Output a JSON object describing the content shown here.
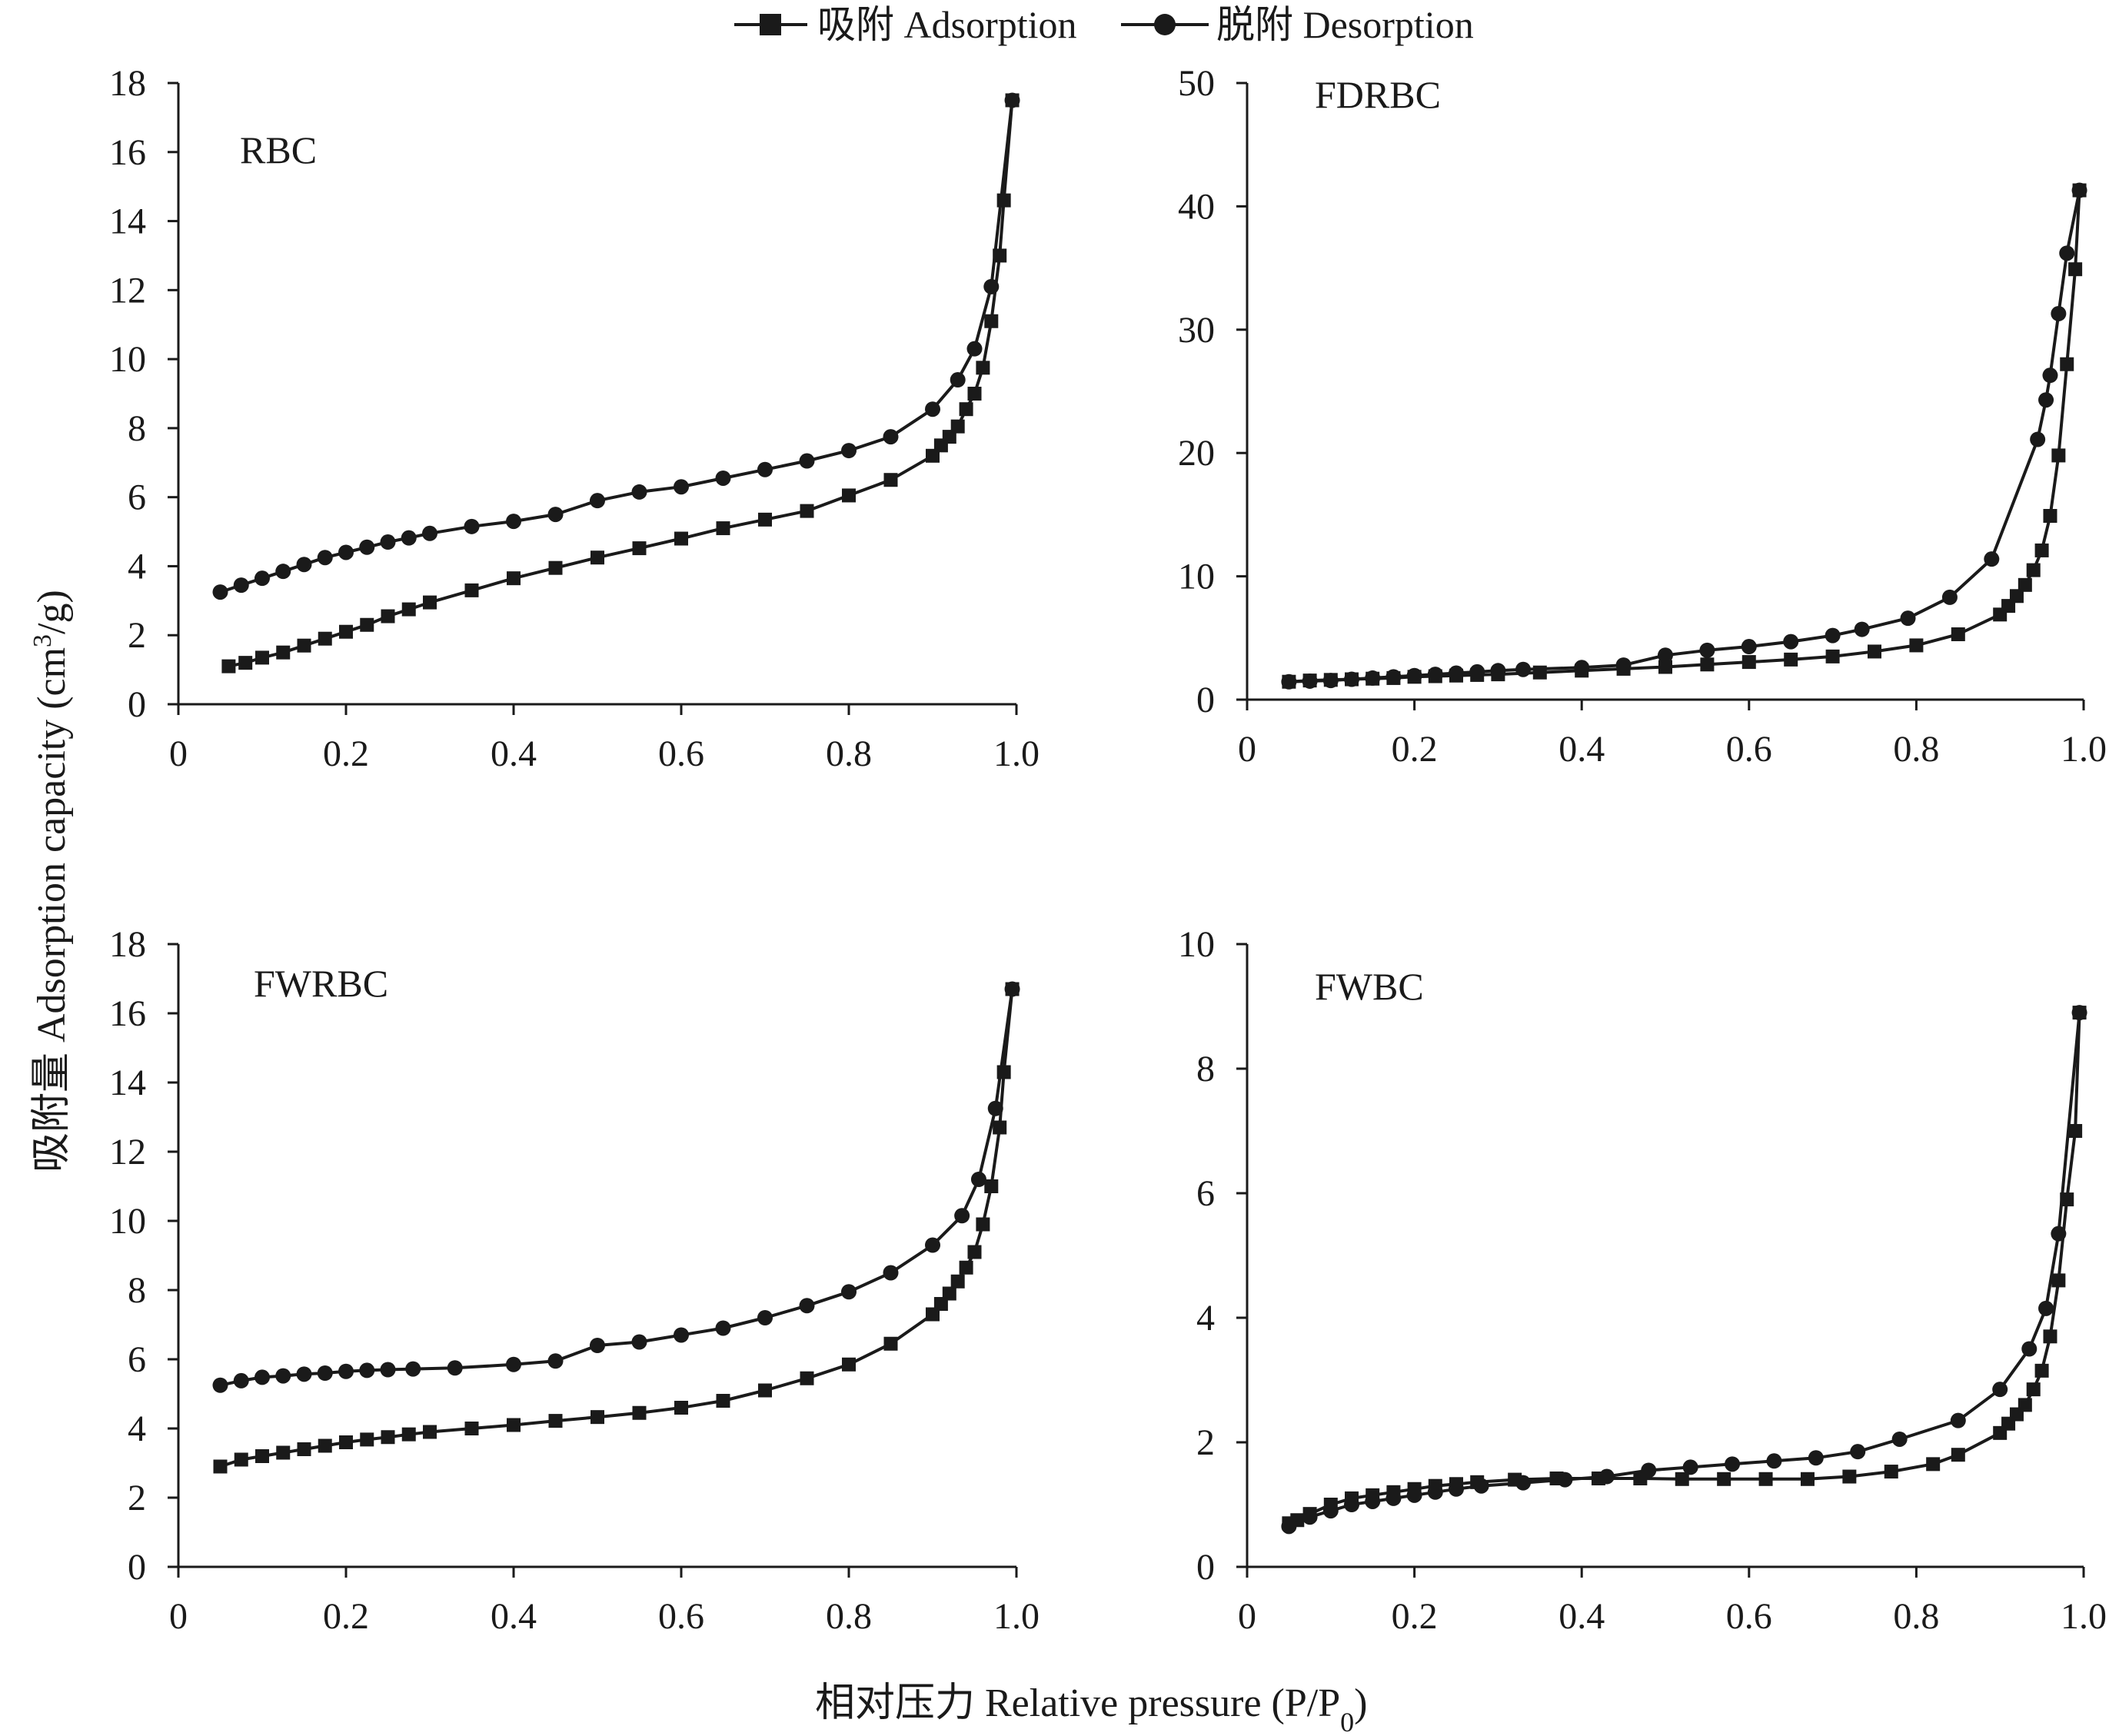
{
  "legend": {
    "adsorption": "吸附 Adsorption",
    "desorption": "脱附 Desorption"
  },
  "axis_titles": {
    "x_prefix": "相对压力 Relative pressure (P/P",
    "x_sub": "0",
    "x_suffix": ")",
    "y_prefix": "吸附量 Adsorption capacity (cm",
    "y_sup": "3",
    "y_suffix": "/g)"
  },
  "colors": {
    "line": "#1a1a1a"
  },
  "chart_data": [
    {
      "type": "line",
      "title": "RBC",
      "xlim": [
        0,
        1.0
      ],
      "ylim": [
        0,
        18
      ],
      "x_ticks": [
        "0",
        "0.2",
        "0.4",
        "0.6",
        "0.8",
        "1.0"
      ],
      "y_ticks": [
        "0",
        "2",
        "4",
        "6",
        "8",
        "10",
        "12",
        "14",
        "16",
        "18"
      ],
      "series": [
        {
          "name": "吸附 Adsorption",
          "marker": "square",
          "points": [
            [
              0.06,
              1.1
            ],
            [
              0.08,
              1.2
            ],
            [
              0.1,
              1.35
            ],
            [
              0.125,
              1.5
            ],
            [
              0.15,
              1.7
            ],
            [
              0.175,
              1.9
            ],
            [
              0.2,
              2.1
            ],
            [
              0.225,
              2.3
            ],
            [
              0.25,
              2.55
            ],
            [
              0.275,
              2.75
            ],
            [
              0.3,
              2.95
            ],
            [
              0.35,
              3.3
            ],
            [
              0.4,
              3.65
            ],
            [
              0.45,
              3.95
            ],
            [
              0.5,
              4.25
            ],
            [
              0.55,
              4.52
            ],
            [
              0.6,
              4.8
            ],
            [
              0.65,
              5.1
            ],
            [
              0.7,
              5.35
            ],
            [
              0.75,
              5.6
            ],
            [
              0.8,
              6.05
            ],
            [
              0.85,
              6.5
            ],
            [
              0.9,
              7.2
            ],
            [
              0.91,
              7.5
            ],
            [
              0.92,
              7.75
            ],
            [
              0.93,
              8.05
            ],
            [
              0.94,
              8.55
            ],
            [
              0.95,
              9.0
            ],
            [
              0.96,
              9.75
            ],
            [
              0.97,
              11.1
            ],
            [
              0.98,
              13.0
            ],
            [
              0.985,
              14.6
            ],
            [
              0.995,
              17.5
            ]
          ]
        },
        {
          "name": "脱附 Desorption",
          "marker": "circle",
          "points": [
            [
              0.995,
              17.5
            ],
            [
              0.97,
              12.1
            ],
            [
              0.95,
              10.3
            ],
            [
              0.93,
              9.4
            ],
            [
              0.9,
              8.55
            ],
            [
              0.85,
              7.75
            ],
            [
              0.8,
              7.35
            ],
            [
              0.75,
              7.05
            ],
            [
              0.7,
              6.8
            ],
            [
              0.65,
              6.55
            ],
            [
              0.6,
              6.3
            ],
            [
              0.55,
              6.15
            ],
            [
              0.5,
              5.9
            ],
            [
              0.45,
              5.5
            ],
            [
              0.4,
              5.3
            ],
            [
              0.35,
              5.15
            ],
            [
              0.3,
              4.95
            ],
            [
              0.275,
              4.82
            ],
            [
              0.25,
              4.7
            ],
            [
              0.225,
              4.55
            ],
            [
              0.2,
              4.4
            ],
            [
              0.175,
              4.25
            ],
            [
              0.15,
              4.05
            ],
            [
              0.125,
              3.85
            ],
            [
              0.1,
              3.65
            ],
            [
              0.075,
              3.45
            ],
            [
              0.05,
              3.25
            ]
          ]
        }
      ]
    },
    {
      "type": "line",
      "title": "FDRBC",
      "xlim": [
        0,
        1.0
      ],
      "ylim": [
        0,
        50
      ],
      "x_ticks": [
        "0",
        "0.2",
        "0.4",
        "0.6",
        "0.8",
        "1.0"
      ],
      "y_ticks": [
        "0",
        "10",
        "20",
        "30",
        "40",
        "50"
      ],
      "series": [
        {
          "name": "吸附 Adsorption",
          "marker": "square",
          "points": [
            [
              0.05,
              1.45
            ],
            [
              0.075,
              1.55
            ],
            [
              0.1,
              1.6
            ],
            [
              0.125,
              1.65
            ],
            [
              0.15,
              1.7
            ],
            [
              0.175,
              1.75
            ],
            [
              0.2,
              1.85
            ],
            [
              0.225,
              1.9
            ],
            [
              0.25,
              1.95
            ],
            [
              0.275,
              2.0
            ],
            [
              0.3,
              2.05
            ],
            [
              0.35,
              2.2
            ],
            [
              0.4,
              2.35
            ],
            [
              0.45,
              2.5
            ],
            [
              0.5,
              2.65
            ],
            [
              0.55,
              2.85
            ],
            [
              0.6,
              3.05
            ],
            [
              0.65,
              3.25
            ],
            [
              0.7,
              3.5
            ],
            [
              0.75,
              3.9
            ],
            [
              0.8,
              4.4
            ],
            [
              0.85,
              5.3
            ],
            [
              0.9,
              6.9
            ],
            [
              0.91,
              7.6
            ],
            [
              0.92,
              8.4
            ],
            [
              0.93,
              9.3
            ],
            [
              0.94,
              10.5
            ],
            [
              0.95,
              12.1
            ],
            [
              0.96,
              14.9
            ],
            [
              0.97,
              19.8
            ],
            [
              0.98,
              27.2
            ],
            [
              0.99,
              34.9
            ],
            [
              0.995,
              41.3
            ]
          ]
        },
        {
          "name": "脱附 Desorption",
          "marker": "circle",
          "points": [
            [
              0.995,
              41.3
            ],
            [
              0.98,
              36.2
            ],
            [
              0.97,
              31.3
            ],
            [
              0.96,
              26.3
            ],
            [
              0.955,
              24.3
            ],
            [
              0.945,
              21.1
            ],
            [
              0.89,
              11.4
            ],
            [
              0.84,
              8.3
            ],
            [
              0.79,
              6.6
            ],
            [
              0.735,
              5.7
            ],
            [
              0.7,
              5.2
            ],
            [
              0.65,
              4.7
            ],
            [
              0.6,
              4.3
            ],
            [
              0.55,
              4.0
            ],
            [
              0.5,
              3.6
            ],
            [
              0.45,
              2.8
            ],
            [
              0.4,
              2.6
            ],
            [
              0.33,
              2.45
            ],
            [
              0.3,
              2.35
            ],
            [
              0.275,
              2.25
            ],
            [
              0.25,
              2.15
            ],
            [
              0.225,
              2.05
            ],
            [
              0.2,
              1.95
            ],
            [
              0.175,
              1.85
            ],
            [
              0.15,
              1.75
            ],
            [
              0.125,
              1.65
            ],
            [
              0.1,
              1.55
            ],
            [
              0.075,
              1.5
            ],
            [
              0.05,
              1.45
            ]
          ]
        }
      ]
    },
    {
      "type": "line",
      "title": "FWRBC",
      "xlim": [
        0,
        1.0
      ],
      "ylim": [
        0,
        18
      ],
      "x_ticks": [
        "0",
        "0.2",
        "0.4",
        "0.6",
        "0.8",
        "1.0"
      ],
      "y_ticks": [
        "0",
        "2",
        "4",
        "6",
        "8",
        "10",
        "12",
        "14",
        "16",
        "18"
      ],
      "series": [
        {
          "name": "吸附 Adsorption",
          "marker": "square",
          "points": [
            [
              0.05,
              2.9
            ],
            [
              0.075,
              3.1
            ],
            [
              0.1,
              3.2
            ],
            [
              0.125,
              3.3
            ],
            [
              0.15,
              3.4
            ],
            [
              0.175,
              3.5
            ],
            [
              0.2,
              3.6
            ],
            [
              0.225,
              3.68
            ],
            [
              0.25,
              3.75
            ],
            [
              0.275,
              3.83
            ],
            [
              0.3,
              3.9
            ],
            [
              0.35,
              4.0
            ],
            [
              0.4,
              4.1
            ],
            [
              0.45,
              4.22
            ],
            [
              0.5,
              4.33
            ],
            [
              0.55,
              4.45
            ],
            [
              0.6,
              4.6
            ],
            [
              0.65,
              4.8
            ],
            [
              0.7,
              5.1
            ],
            [
              0.75,
              5.45
            ],
            [
              0.8,
              5.85
            ],
            [
              0.85,
              6.45
            ],
            [
              0.9,
              7.3
            ],
            [
              0.91,
              7.6
            ],
            [
              0.92,
              7.9
            ],
            [
              0.93,
              8.25
            ],
            [
              0.94,
              8.65
            ],
            [
              0.95,
              9.1
            ],
            [
              0.96,
              9.9
            ],
            [
              0.97,
              11.0
            ],
            [
              0.98,
              12.7
            ],
            [
              0.985,
              14.3
            ],
            [
              0.995,
              16.7
            ]
          ]
        },
        {
          "name": "脱附 Desorption",
          "marker": "circle",
          "points": [
            [
              0.995,
              16.7
            ],
            [
              0.975,
              13.25
            ],
            [
              0.955,
              11.2
            ],
            [
              0.935,
              10.15
            ],
            [
              0.9,
              9.3
            ],
            [
              0.85,
              8.5
            ],
            [
              0.8,
              7.95
            ],
            [
              0.75,
              7.55
            ],
            [
              0.7,
              7.2
            ],
            [
              0.65,
              6.9
            ],
            [
              0.6,
              6.7
            ],
            [
              0.55,
              6.5
            ],
            [
              0.5,
              6.4
            ],
            [
              0.45,
              5.95
            ],
            [
              0.4,
              5.85
            ],
            [
              0.33,
              5.75
            ],
            [
              0.28,
              5.72
            ],
            [
              0.25,
              5.7
            ],
            [
              0.225,
              5.68
            ],
            [
              0.2,
              5.65
            ],
            [
              0.175,
              5.6
            ],
            [
              0.15,
              5.57
            ],
            [
              0.125,
              5.52
            ],
            [
              0.1,
              5.48
            ],
            [
              0.075,
              5.38
            ],
            [
              0.05,
              5.25
            ]
          ]
        }
      ]
    },
    {
      "type": "line",
      "title": "FWBC",
      "xlim": [
        0,
        1.0
      ],
      "ylim": [
        0,
        10
      ],
      "x_ticks": [
        "0",
        "0.2",
        "0.4",
        "0.6",
        "0.8",
        "1.0"
      ],
      "y_ticks": [
        "0",
        "2",
        "4",
        "6",
        "8",
        "10"
      ],
      "series": [
        {
          "name": "吸附 Adsorption",
          "marker": "square",
          "points": [
            [
              0.05,
              0.7
            ],
            [
              0.06,
              0.75
            ],
            [
              0.075,
              0.85
            ],
            [
              0.1,
              1.0
            ],
            [
              0.125,
              1.1
            ],
            [
              0.15,
              1.15
            ],
            [
              0.175,
              1.2
            ],
            [
              0.2,
              1.25
            ],
            [
              0.225,
              1.3
            ],
            [
              0.25,
              1.33
            ],
            [
              0.275,
              1.36
            ],
            [
              0.32,
              1.4
            ],
            [
              0.37,
              1.42
            ],
            [
              0.42,
              1.42
            ],
            [
              0.47,
              1.42
            ],
            [
              0.52,
              1.41
            ],
            [
              0.57,
              1.41
            ],
            [
              0.62,
              1.41
            ],
            [
              0.67,
              1.41
            ],
            [
              0.72,
              1.45
            ],
            [
              0.77,
              1.53
            ],
            [
              0.82,
              1.65
            ],
            [
              0.85,
              1.8
            ],
            [
              0.9,
              2.15
            ],
            [
              0.91,
              2.3
            ],
            [
              0.92,
              2.45
            ],
            [
              0.93,
              2.6
            ],
            [
              0.94,
              2.85
            ],
            [
              0.95,
              3.15
            ],
            [
              0.96,
              3.7
            ],
            [
              0.97,
              4.6
            ],
            [
              0.98,
              5.9
            ],
            [
              0.99,
              7.0
            ],
            [
              0.995,
              8.9
            ]
          ]
        },
        {
          "name": "脱附 Desorption",
          "marker": "circle",
          "points": [
            [
              0.995,
              8.9
            ],
            [
              0.97,
              5.35
            ],
            [
              0.955,
              4.15
            ],
            [
              0.935,
              3.5
            ],
            [
              0.9,
              2.85
            ],
            [
              0.85,
              2.35
            ],
            [
              0.78,
              2.05
            ],
            [
              0.73,
              1.85
            ],
            [
              0.68,
              1.75
            ],
            [
              0.63,
              1.7
            ],
            [
              0.58,
              1.65
            ],
            [
              0.53,
              1.6
            ],
            [
              0.48,
              1.55
            ],
            [
              0.43,
              1.45
            ],
            [
              0.38,
              1.4
            ],
            [
              0.33,
              1.35
            ],
            [
              0.28,
              1.3
            ],
            [
              0.25,
              1.25
            ],
            [
              0.225,
              1.2
            ],
            [
              0.2,
              1.15
            ],
            [
              0.175,
              1.1
            ],
            [
              0.15,
              1.05
            ],
            [
              0.125,
              1.0
            ],
            [
              0.1,
              0.9
            ],
            [
              0.075,
              0.8
            ],
            [
              0.05,
              0.65
            ]
          ]
        }
      ]
    }
  ]
}
